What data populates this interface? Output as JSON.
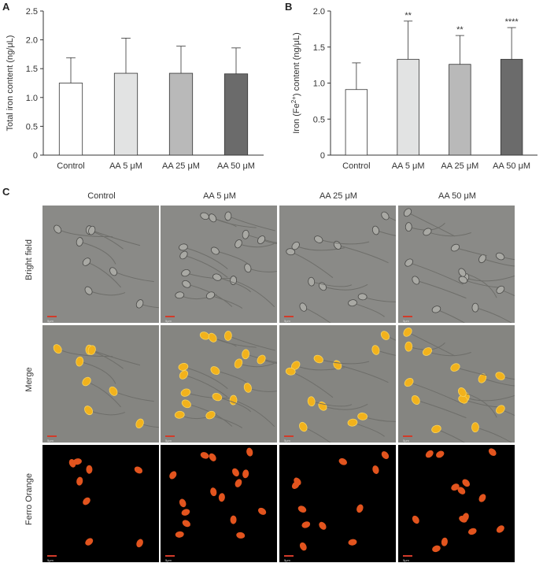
{
  "panels": {
    "a": "A",
    "b": "B",
    "c": "C"
  },
  "chart_data": [
    {
      "type": "bar",
      "categories": [
        "Control",
        "AA 5 μM",
        "AA 25 μM",
        "AA 50 μM"
      ],
      "values": [
        1.25,
        1.42,
        1.42,
        1.41
      ],
      "errors": [
        0.44,
        0.61,
        0.47,
        0.45
      ],
      "significance": [
        "",
        "",
        "",
        ""
      ],
      "ylabel": "Total iron content (ng/μL)",
      "ylim": [
        0,
        2.5
      ],
      "yticks": [
        "0",
        "0.5",
        "1.0",
        "1.5",
        "2.0",
        "2.5"
      ],
      "bar_colors": [
        "#ffffff",
        "#e2e3e3",
        "#b9b9b9",
        "#6b6b6b"
      ]
    },
    {
      "type": "bar",
      "categories": [
        "Control",
        "AA 5 μM",
        "AA 25 μM",
        "AA 50 μM"
      ],
      "values": [
        0.91,
        1.33,
        1.26,
        1.33
      ],
      "errors": [
        0.37,
        0.53,
        0.4,
        0.44
      ],
      "significance": [
        "",
        "**",
        "**",
        "****"
      ],
      "ylabel_parts": [
        "Iron (Fe",
        "2+",
        ") content (ng/μL)"
      ],
      "ylim": [
        0,
        2.0
      ],
      "yticks": [
        "0",
        "0.5",
        "1.0",
        "1.5",
        "2.0"
      ],
      "bar_colors": [
        "#ffffff",
        "#e2e3e3",
        "#b9b9b9",
        "#6b6b6b"
      ]
    }
  ],
  "micrographs": {
    "columns": [
      "Control",
      "AA 5 μM",
      "AA 25 μM",
      "AA 50 μM"
    ],
    "rows": [
      "Bright field",
      "Merge",
      "Ferro Orange"
    ],
    "scale_label": "5μm"
  }
}
